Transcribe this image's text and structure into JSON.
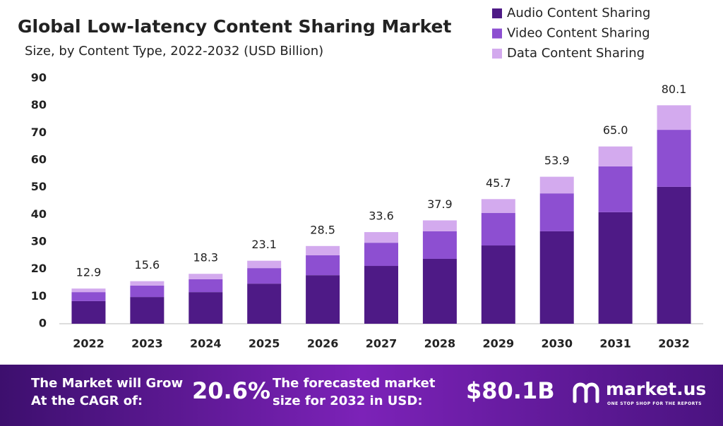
{
  "chart_data": {
    "type": "stacked_bar",
    "title": "Global Low-latency Content Sharing Market",
    "subtitle": "Size, by Content Type, 2022-2032 (USD Billion)",
    "categories": [
      "2022",
      "2023",
      "2024",
      "2025",
      "2026",
      "2027",
      "2028",
      "2029",
      "2030",
      "2031",
      "2032"
    ],
    "series": [
      {
        "name": "Audio Content Sharing",
        "color": "#4e1a86",
        "values": [
          8.3,
          9.8,
          11.6,
          14.7,
          17.8,
          21.2,
          23.8,
          28.7,
          33.9,
          40.9,
          50.2
        ]
      },
      {
        "name": "Video Content Sharing",
        "color": "#8d4fd1",
        "values": [
          3.3,
          4.2,
          4.7,
          5.7,
          7.3,
          8.5,
          10.1,
          11.9,
          13.9,
          16.8,
          20.9
        ]
      },
      {
        "name": "Data Content Sharing",
        "color": "#d3aaee",
        "values": [
          1.3,
          1.6,
          2.0,
          2.7,
          3.4,
          3.9,
          4.0,
          5.1,
          6.1,
          7.3,
          9.0
        ]
      }
    ],
    "totals": [
      12.9,
      15.6,
      18.3,
      23.1,
      28.5,
      33.6,
      37.9,
      45.7,
      53.9,
      65.0,
      80.1
    ],
    "totals_labels": [
      "12.9",
      "15.6",
      "18.3",
      "23.1",
      "28.5",
      "33.6",
      "37.9",
      "45.7",
      "53.9",
      "65.0",
      "80.1"
    ],
    "ylim": [
      0,
      90
    ],
    "yticks": [
      0,
      10,
      20,
      30,
      40,
      50,
      60,
      70,
      80,
      90
    ],
    "grid": false,
    "legend": "top-right"
  },
  "footer": {
    "cagr_text": "The Market will Grow At the CAGR of:",
    "cagr_value": "20.6%",
    "forecast_text": "The forecasted market size for 2032 in USD:",
    "forecast_value": "$80.1B",
    "brand": "market.us",
    "tagline": "ONE STOP SHOP FOR THE REPORTS"
  }
}
